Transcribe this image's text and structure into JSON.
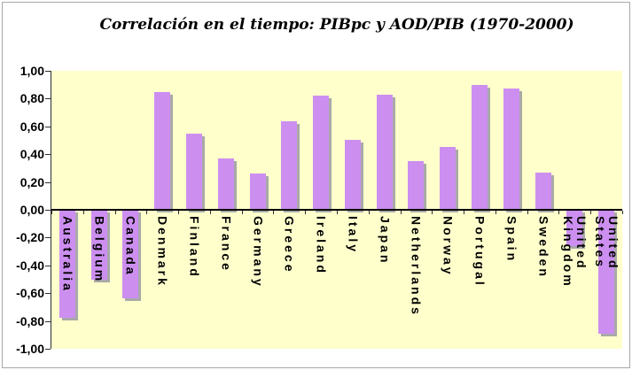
{
  "chart_data": {
    "type": "bar",
    "title": "Correlación en el tiempo: PIBpc y AOD/PIB (1970-2000)",
    "categories": [
      "Australia",
      "Belgium",
      "Canada",
      "Denmark",
      "Finland",
      "France",
      "Germany",
      "Greece",
      "Ireland",
      "Italy",
      "Japan",
      "Netherlands",
      "Norway",
      "Portugal",
      "Spain",
      "Sweden",
      "United Kingdom",
      "United States"
    ],
    "values": [
      -0.78,
      -0.5,
      -0.64,
      0.85,
      0.55,
      0.37,
      0.26,
      0.64,
      0.82,
      0.5,
      0.83,
      0.35,
      0.45,
      0.9,
      0.87,
      0.27,
      -0.26,
      -0.89
    ],
    "xlabel": "",
    "ylabel": "",
    "ylim": [
      -1.0,
      1.0
    ],
    "ytick_step": 0.2,
    "ytick_labels": [
      "1,00",
      "0,80",
      "0,60",
      "0,40",
      "0,20",
      "0,00",
      "-0,20",
      "-0,40",
      "-0,60",
      "-0,80",
      "-1,00"
    ],
    "grid": "off",
    "legend": "none",
    "colors": {
      "bar": "#CC8FF0",
      "bar_shadow": "#A9A9A9",
      "plot_bg": "#FFFFCC",
      "chart_bg": "#FFFFFF",
      "axis": "#000000",
      "text": "#000000",
      "border": "#A8A8A8"
    }
  }
}
